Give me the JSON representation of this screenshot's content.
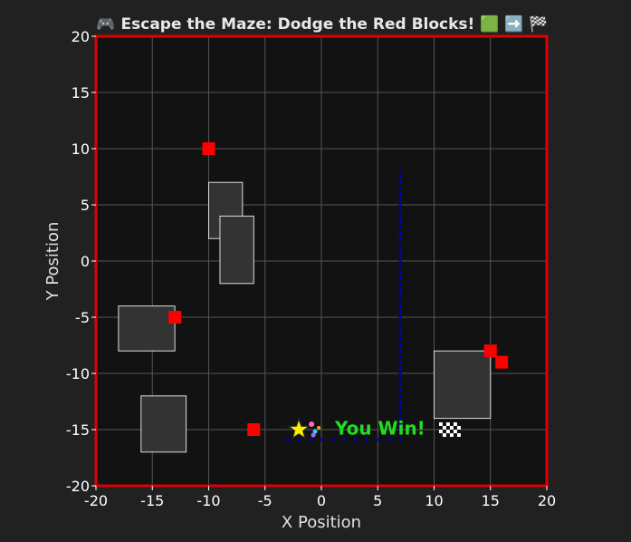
{
  "title": "🎮 Escape the Maze: Dodge the Red Blocks! 🟩 ➡️ 🏁",
  "win_text": "You Win!",
  "xlabel": "X Position",
  "ylabel": "Y Position",
  "xlim": [
    -20,
    20
  ],
  "ylim": [
    -20,
    20
  ],
  "xticks": [
    -20,
    -15,
    -10,
    -5,
    0,
    5,
    10,
    15,
    20
  ],
  "yticks": [
    -20,
    -15,
    -10,
    -5,
    0,
    5,
    10,
    15,
    20
  ],
  "grid": true,
  "colors": {
    "background": "#212121",
    "plot_background": "#121212",
    "border": "#e00000",
    "grid": "#555555",
    "wall_fill": "#333333",
    "wall_stroke": "#dddddd",
    "enemy": "#ff0000",
    "path": "#0000cc",
    "player": "#ffee00",
    "win_text": "#22dd22"
  },
  "chart_data": {
    "type": "scatter",
    "walls": [
      {
        "x": [
          -10,
          -7
        ],
        "y": [
          2,
          7
        ]
      },
      {
        "x": [
          -9,
          -6
        ],
        "y": [
          -2,
          4
        ]
      },
      {
        "x": [
          -18,
          -13
        ],
        "y": [
          -8,
          -4
        ]
      },
      {
        "x": [
          -16,
          -12
        ],
        "y": [
          -17,
          -12
        ]
      },
      {
        "x": [
          10,
          15
        ],
        "y": [
          -14,
          -8
        ]
      }
    ],
    "enemies": [
      {
        "x": -10,
        "y": 10
      },
      {
        "x": -13,
        "y": -5
      },
      {
        "x": -6,
        "y": -15
      },
      {
        "x": 15,
        "y": -8
      },
      {
        "x": 16,
        "y": -9
      }
    ],
    "path": {
      "vertical": {
        "x": 7,
        "y_from": 8,
        "y_to": -15
      },
      "horizontal": {
        "y": -15.9,
        "x_from": -3,
        "x_to": 7
      }
    },
    "player": {
      "x": -2,
      "y": -15
    },
    "win_label_position": {
      "x": 1.2,
      "y": -15
    }
  }
}
